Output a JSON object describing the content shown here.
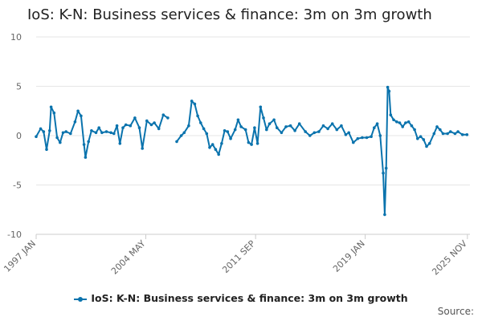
{
  "title": "IoS: K-N: Business services & finance: 3m on 3m growth",
  "source_label": "Source:",
  "colors": {
    "series": "#0a73ad",
    "grid": "#e6e6e6",
    "axis": "#cccccc",
    "text": "#666666"
  },
  "chart_data": {
    "type": "line",
    "title": "IoS: K-N: Business services & finance: 3m on 3m growth",
    "xlabel": "",
    "ylabel": "",
    "ylim": [
      -10,
      10
    ],
    "yticks": [
      10,
      5,
      0,
      -5,
      -10
    ],
    "xlim": [
      1997.0,
      2026.0
    ],
    "xticks": [
      {
        "label": "1997 JAN",
        "x": 1997.0
      },
      {
        "label": "2004 MAY",
        "x": 2004.33
      },
      {
        "label": "2011 SEP",
        "x": 2011.67
      },
      {
        "label": "2019 JAN",
        "x": 2019.0
      },
      {
        "label": "2025 NOV",
        "x": 2025.83
      }
    ],
    "legend_position": "bottom",
    "grid": true,
    "series": [
      {
        "name": "IoS: K-N: Business services & finance: 3m on 3m growth",
        "points": [
          [
            1997.0,
            -0.1
          ],
          [
            1997.3,
            0.7
          ],
          [
            1997.5,
            0.4
          ],
          [
            1997.7,
            -1.4
          ],
          [
            1997.9,
            0.5
          ],
          [
            1998.0,
            2.9
          ],
          [
            1998.2,
            2.3
          ],
          [
            1998.4,
            -0.2
          ],
          [
            1998.6,
            -0.7
          ],
          [
            1998.8,
            0.3
          ],
          [
            1999.0,
            0.4
          ],
          [
            1999.3,
            0.2
          ],
          [
            1999.6,
            1.4
          ],
          [
            1999.8,
            2.5
          ],
          [
            2000.0,
            2.0
          ],
          [
            2000.2,
            -0.9
          ],
          [
            2000.3,
            -2.2
          ],
          [
            2000.5,
            -0.6
          ],
          [
            2000.7,
            0.5
          ],
          [
            2001.0,
            0.3
          ],
          [
            2001.2,
            0.8
          ],
          [
            2001.4,
            0.3
          ],
          [
            2001.7,
            0.4
          ],
          [
            2002.0,
            0.3
          ],
          [
            2002.2,
            0.2
          ],
          [
            2002.4,
            1.0
          ],
          [
            2002.6,
            -0.8
          ],
          [
            2002.8,
            0.8
          ],
          [
            2003.0,
            1.1
          ],
          [
            2003.3,
            1.0
          ],
          [
            2003.6,
            1.8
          ],
          [
            2003.9,
            0.8
          ],
          [
            2004.1,
            -1.3
          ],
          [
            2004.4,
            1.5
          ],
          [
            2004.7,
            1.1
          ],
          [
            2004.9,
            1.3
          ],
          [
            2005.2,
            0.7
          ],
          [
            2005.5,
            2.1
          ],
          [
            2005.8,
            1.8
          ],
          [
            2006.4,
            -0.6
          ],
          [
            2006.7,
            0.0
          ],
          [
            2006.9,
            0.3
          ],
          [
            2007.2,
            1.0
          ],
          [
            2007.4,
            3.5
          ],
          [
            2007.6,
            3.2
          ],
          [
            2007.8,
            2.0
          ],
          [
            2008.0,
            1.3
          ],
          [
            2008.2,
            0.7
          ],
          [
            2008.4,
            0.2
          ],
          [
            2008.6,
            -1.2
          ],
          [
            2008.8,
            -0.9
          ],
          [
            2009.0,
            -1.4
          ],
          [
            2009.2,
            -1.9
          ],
          [
            2009.4,
            -0.8
          ],
          [
            2009.6,
            0.5
          ],
          [
            2009.8,
            0.4
          ],
          [
            2010.0,
            -0.3
          ],
          [
            2010.3,
            0.6
          ],
          [
            2010.5,
            1.6
          ],
          [
            2010.7,
            0.9
          ],
          [
            2011.0,
            0.6
          ],
          [
            2011.2,
            -0.7
          ],
          [
            2011.4,
            -0.9
          ],
          [
            2011.6,
            0.8
          ],
          [
            2011.8,
            -0.8
          ],
          [
            2012.0,
            2.9
          ],
          [
            2012.2,
            1.8
          ],
          [
            2012.4,
            0.6
          ],
          [
            2012.6,
            1.2
          ],
          [
            2012.9,
            1.6
          ],
          [
            2013.1,
            0.8
          ],
          [
            2013.4,
            0.3
          ],
          [
            2013.7,
            0.9
          ],
          [
            2014.0,
            1.0
          ],
          [
            2014.3,
            0.5
          ],
          [
            2014.6,
            1.2
          ],
          [
            2015.0,
            0.4
          ],
          [
            2015.3,
            0.0
          ],
          [
            2015.6,
            0.3
          ],
          [
            2015.9,
            0.4
          ],
          [
            2016.2,
            1.0
          ],
          [
            2016.5,
            0.7
          ],
          [
            2016.8,
            1.2
          ],
          [
            2017.1,
            0.6
          ],
          [
            2017.4,
            1.0
          ],
          [
            2017.7,
            0.1
          ],
          [
            2017.9,
            0.3
          ],
          [
            2018.2,
            -0.7
          ],
          [
            2018.5,
            -0.3
          ],
          [
            2018.8,
            -0.2
          ],
          [
            2019.1,
            -0.2
          ],
          [
            2019.4,
            -0.1
          ],
          [
            2019.6,
            0.8
          ],
          [
            2019.8,
            1.2
          ],
          [
            2020.0,
            0.0
          ],
          [
            2020.2,
            -3.8
          ],
          [
            2020.3,
            -8.0
          ],
          [
            2020.4,
            -3.3
          ],
          [
            2020.5,
            4.9
          ],
          [
            2020.6,
            4.5
          ],
          [
            2020.7,
            2.1
          ],
          [
            2020.9,
            1.6
          ],
          [
            2021.1,
            1.4
          ],
          [
            2021.3,
            1.3
          ],
          [
            2021.5,
            0.9
          ],
          [
            2021.7,
            1.3
          ],
          [
            2021.9,
            1.4
          ],
          [
            2022.1,
            1.0
          ],
          [
            2022.3,
            0.6
          ],
          [
            2022.5,
            -0.3
          ],
          [
            2022.7,
            -0.1
          ],
          [
            2022.9,
            -0.4
          ],
          [
            2023.1,
            -1.1
          ],
          [
            2023.3,
            -0.8
          ],
          [
            2023.6,
            0.2
          ],
          [
            2023.8,
            0.9
          ],
          [
            2024.0,
            0.6
          ],
          [
            2024.2,
            0.2
          ],
          [
            2024.5,
            0.2
          ],
          [
            2024.7,
            0.4
          ],
          [
            2025.0,
            0.2
          ],
          [
            2025.2,
            0.4
          ],
          [
            2025.5,
            0.1
          ],
          [
            2025.8,
            0.1
          ]
        ]
      }
    ]
  }
}
